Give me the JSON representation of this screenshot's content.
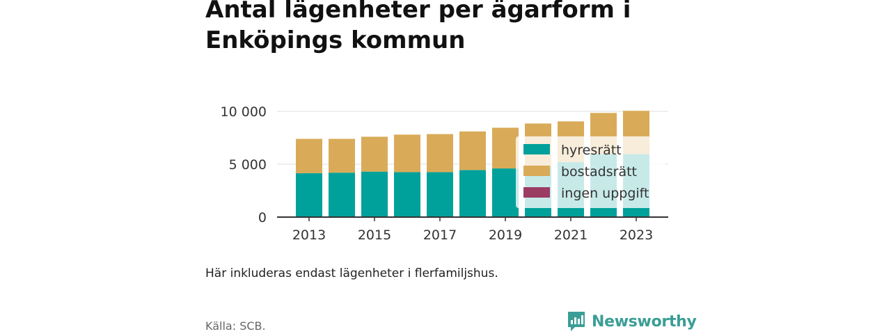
{
  "title": "Antal lägenheter per ägarform i Enköpings kommun",
  "note": "Här inkluderas endast lägenheter i flerfamiljshus.",
  "source": "Källa: SCB.",
  "brand": "Newsworthy",
  "colors": {
    "hyresratt": "#00a19a",
    "bostadsratt": "#d9ab58",
    "ingen_uppgift": "#9b3c63",
    "hyresratt_faded": "#c9eae8",
    "bostadsratt_faded": "#f5ebdb",
    "axis": "#333333",
    "grid": "#dddddd"
  },
  "chart_data": {
    "type": "bar",
    "stacked": true,
    "categories": [
      "2013",
      "2014",
      "2015",
      "2016",
      "2017",
      "2018",
      "2019",
      "2020",
      "2021",
      "2022",
      "2023"
    ],
    "series": [
      {
        "name": "hyresrätt",
        "values": [
          4150,
          4200,
          4300,
          4250,
          4250,
          4450,
          4600,
          4800,
          5200,
          5950,
          5950
        ]
      },
      {
        "name": "bostadsrätt",
        "values": [
          3250,
          3200,
          3300,
          3550,
          3600,
          3650,
          3850,
          4050,
          3850,
          3900,
          4100
        ]
      },
      {
        "name": "ingen uppgift",
        "values": [
          0,
          0,
          0,
          0,
          0,
          0,
          0,
          0,
          0,
          0,
          0
        ]
      }
    ],
    "xticks": [
      "2013",
      "2015",
      "2017",
      "2019",
      "2021",
      "2023"
    ],
    "yticks": [
      0,
      5000,
      10000
    ],
    "ytick_labels": [
      "0",
      "5 000",
      "10 000"
    ],
    "ylim": [
      0,
      10000
    ],
    "grid": true,
    "legend_position": "inside-right"
  }
}
